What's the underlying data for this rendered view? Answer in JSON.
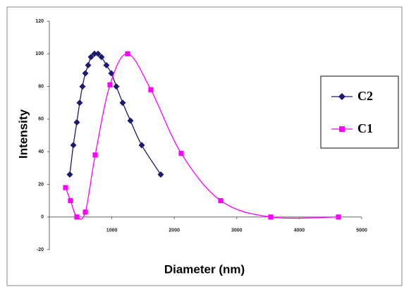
{
  "chart_data": {
    "type": "line",
    "x_label": "Diameter (nm)",
    "y_label": "Intensity",
    "xlim": [
      0,
      5000
    ],
    "xticks": [
      1000,
      2000,
      3000,
      4000,
      5000
    ],
    "ylim": [
      -20,
      120
    ],
    "yticks": [
      -20,
      0,
      20,
      40,
      60,
      80,
      100,
      120
    ],
    "smooth": true,
    "series": [
      {
        "name": "C2",
        "color": "#1a1a6e",
        "marker": "diamond",
        "x": [
          327,
          384,
          440,
          485,
          530,
          576,
          621,
          666,
          722,
          779,
          835,
          914,
          993,
          1072,
          1174,
          1298,
          1479,
          1783
        ],
        "values": [
          26,
          44,
          58,
          70,
          80,
          88,
          93,
          98,
          100,
          100,
          98,
          93,
          88,
          80,
          70,
          59,
          44,
          26
        ]
      },
      {
        "name": "C1",
        "color": "#ff00ff",
        "marker": "square",
        "x": [
          260,
          339,
          440,
          576,
          734,
          971,
          1253,
          1625,
          2111,
          2743,
          3544,
          4628
        ],
        "values": [
          18,
          10,
          0,
          3,
          38,
          81,
          100,
          78,
          39,
          10,
          0,
          0
        ]
      }
    ]
  }
}
